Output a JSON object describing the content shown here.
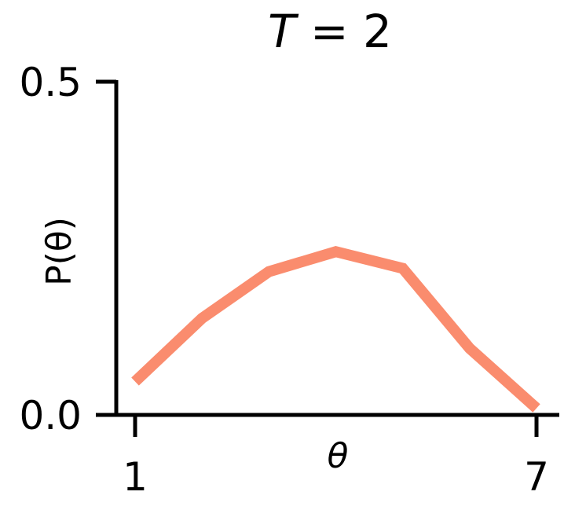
{
  "chart_data": {
    "type": "line",
    "title": "T = 2",
    "title_var": "T",
    "title_rest": " = 2",
    "xlabel": "θ",
    "ylabel": "P(θ)",
    "x": [
      1,
      2,
      3,
      4,
      5,
      6,
      7
    ],
    "series": [
      {
        "values": [
          0.05,
          0.145,
          0.215,
          0.245,
          0.22,
          0.1,
          0.01
        ],
        "color": "#fa8c6e"
      }
    ],
    "xlim": [
      1,
      7
    ],
    "ylim": [
      0,
      0.5
    ],
    "xticks": [
      1,
      7
    ],
    "xtick_labels": [
      "1",
      "7"
    ],
    "yticks": [
      0,
      0.5
    ],
    "ytick_labels": [
      "0.0",
      "0.5"
    ],
    "grid": false,
    "legend": "none",
    "spines": [
      "left",
      "bottom"
    ]
  }
}
